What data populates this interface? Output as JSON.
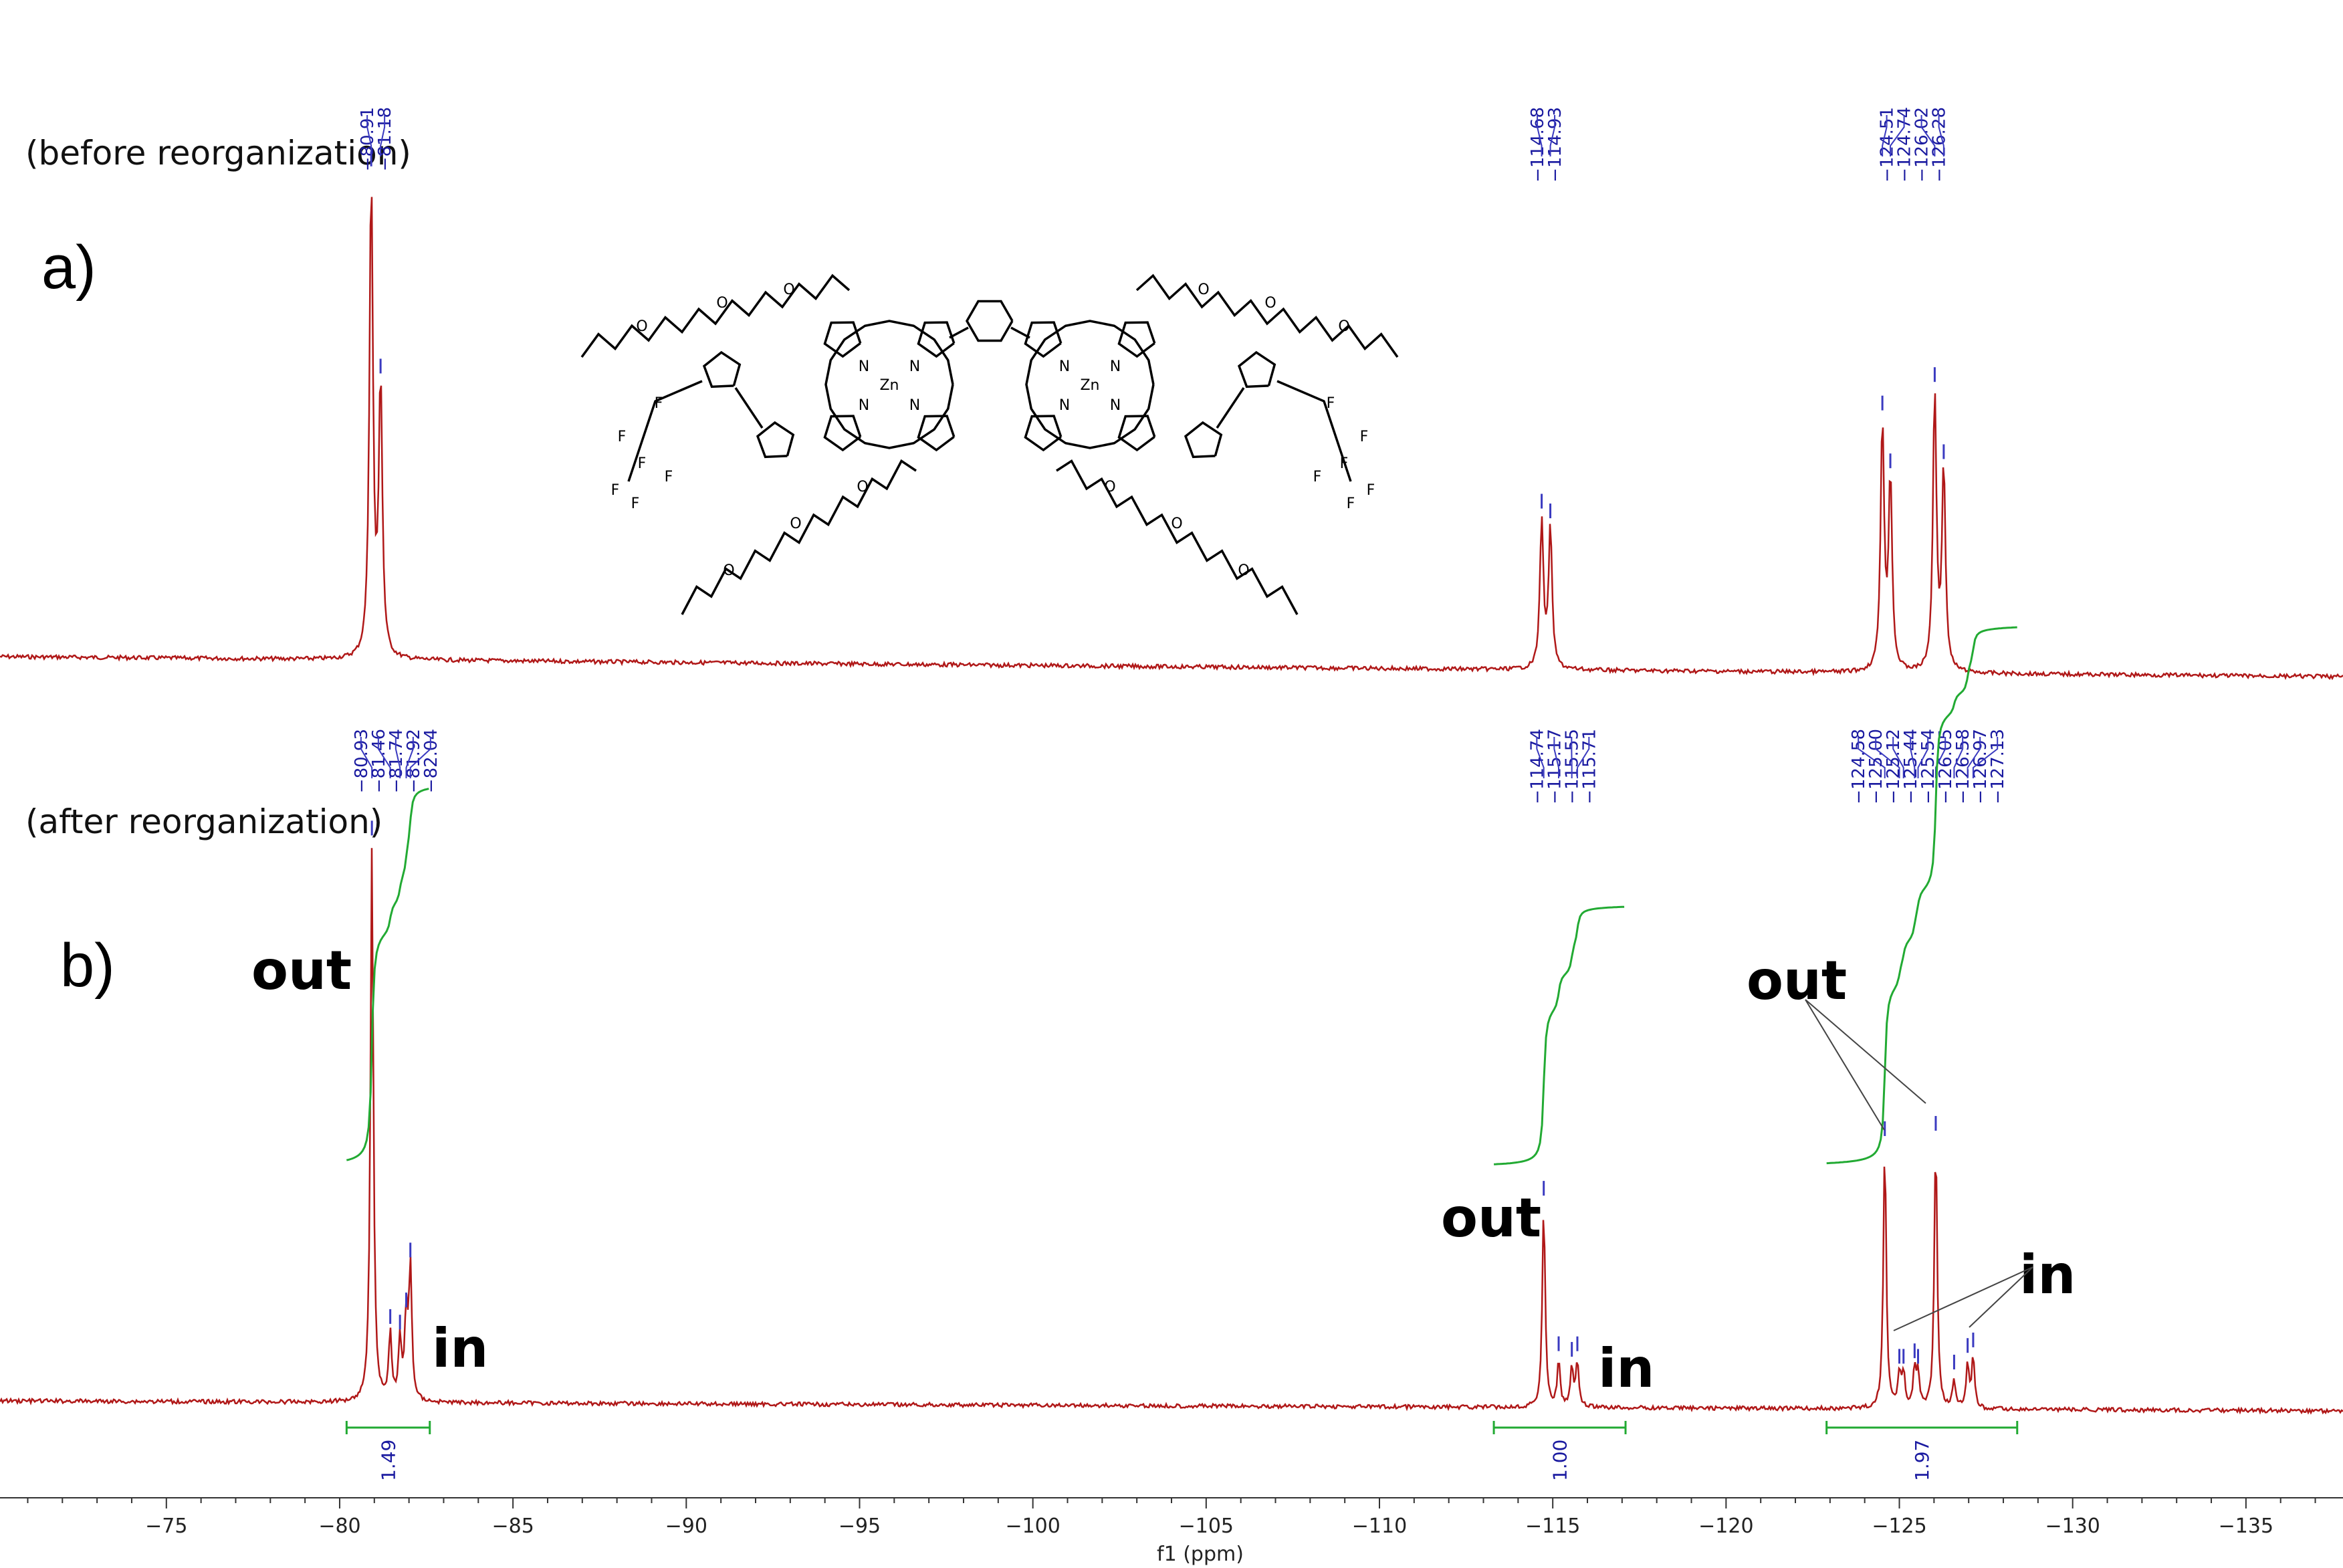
{
  "chart_data": {
    "type": "nmr-spectrum",
    "xlabel": "f1 (ppm)",
    "xlim": [
      -70.2,
      -137.8
    ],
    "xticks": [
      -75,
      -80,
      -85,
      -90,
      -95,
      -100,
      -105,
      -110,
      -115,
      -120,
      -125,
      -130,
      -135
    ],
    "spectra": [
      {
        "panel": "a)",
        "name": "(before reorganization)",
        "color": "#b01818",
        "peak_labels": [
          "-80.91",
          "-81.18",
          "-114.68",
          "-114.93",
          "-124.51",
          "-124.74",
          "-126.02",
          "-126.28"
        ],
        "peaks": [
          {
            "ppm": -80.91,
            "height": 1.0
          },
          {
            "ppm": -81.18,
            "height": 0.57
          },
          {
            "ppm": -114.68,
            "height": 0.31
          },
          {
            "ppm": -114.93,
            "height": 0.29
          },
          {
            "ppm": -124.51,
            "height": 0.52
          },
          {
            "ppm": -124.74,
            "height": 0.4
          },
          {
            "ppm": -126.02,
            "height": 0.58
          },
          {
            "ppm": -126.28,
            "height": 0.42
          }
        ]
      },
      {
        "panel": "b)",
        "name": "(after reorganization)",
        "color": "#b01818",
        "peak_labels": [
          "-80.93",
          "-81.46",
          "-81.74",
          "-81.92",
          "-82.04",
          "-114.74",
          "-115.17",
          "-115.55",
          "-115.71",
          "-124.58",
          "-125.00",
          "-125.12",
          "-125.44",
          "-125.54",
          "-126.05",
          "-126.58",
          "-126.97",
          "-127.13"
        ],
        "peaks": [
          {
            "ppm": -80.93,
            "height": 1.0
          },
          {
            "ppm": -81.46,
            "height": 0.12
          },
          {
            "ppm": -81.74,
            "height": 0.11
          },
          {
            "ppm": -81.92,
            "height": 0.15
          },
          {
            "ppm": -82.04,
            "height": 0.24
          },
          {
            "ppm": -114.74,
            "height": 0.36
          },
          {
            "ppm": -115.17,
            "height": 0.08
          },
          {
            "ppm": -115.55,
            "height": 0.07
          },
          {
            "ppm": -115.71,
            "height": 0.08
          },
          {
            "ppm": -124.58,
            "height": 0.47
          },
          {
            "ppm": -125.0,
            "height": 0.06
          },
          {
            "ppm": -125.12,
            "height": 0.06
          },
          {
            "ppm": -125.44,
            "height": 0.07
          },
          {
            "ppm": -125.54,
            "height": 0.06
          },
          {
            "ppm": -126.05,
            "height": 0.48
          },
          {
            "ppm": -126.58,
            "height": 0.05
          },
          {
            "ppm": -126.97,
            "height": 0.08
          },
          {
            "ppm": -127.13,
            "height": 0.09
          }
        ],
        "integrals": [
          {
            "from": -80.2,
            "to": -82.6,
            "value": "1.49",
            "rise": 0.41
          },
          {
            "from": -113.3,
            "to": -117.1,
            "value": "1.00",
            "rise": 0.28
          },
          {
            "from": -122.9,
            "to": -128.4,
            "value": "1.97",
            "rise": 0.58
          }
        ]
      }
    ]
  },
  "annotations": {
    "out_1": "out",
    "in_1": "in",
    "out_2": "out",
    "in_2": "in",
    "out_3": "out",
    "in_3": "in"
  },
  "molecule": {
    "atoms": {
      "zn": "Zn",
      "n": "N",
      "f": "F",
      "o": "O"
    }
  }
}
